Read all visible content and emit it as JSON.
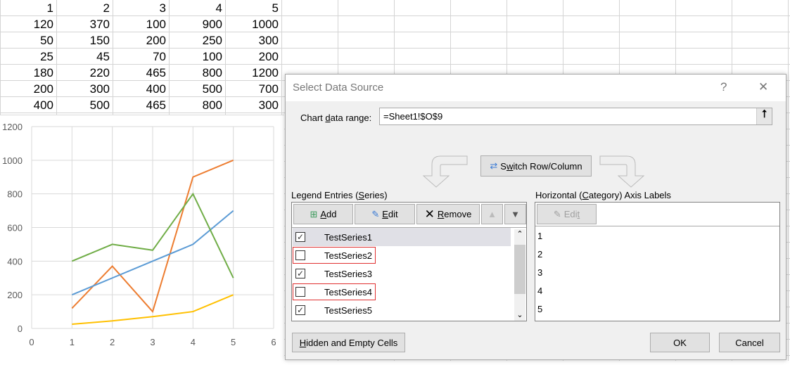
{
  "sheet": {
    "rows": [
      [
        "1",
        "2",
        "3",
        "4",
        "5"
      ],
      [
        "120",
        "370",
        "100",
        "900",
        "1000"
      ],
      [
        "50",
        "150",
        "200",
        "250",
        "300"
      ],
      [
        "25",
        "45",
        "70",
        "100",
        "200"
      ],
      [
        "180",
        "220",
        "465",
        "800",
        "1200"
      ],
      [
        "200",
        "300",
        "400",
        "500",
        "700"
      ],
      [
        "400",
        "500",
        "465",
        "800",
        "300"
      ]
    ]
  },
  "chart_data": {
    "type": "line",
    "xlim": [
      0,
      6
    ],
    "ylim": [
      0,
      1200
    ],
    "x_ticks": [
      "0",
      "1",
      "2",
      "3",
      "4",
      "5",
      "6"
    ],
    "y_ticks": [
      "0",
      "200",
      "400",
      "600",
      "800",
      "1000",
      "1200"
    ],
    "grid": true,
    "x": [
      1,
      2,
      3,
      4,
      5
    ],
    "series": [
      {
        "values": [
          120,
          370,
          100,
          900,
          1000
        ],
        "color": "#ed7d31"
      },
      {
        "values": [
          25,
          45,
          70,
          100,
          200
        ],
        "color": "#ffc000"
      },
      {
        "values": [
          200,
          300,
          400,
          500,
          700
        ],
        "color": "#5b9bd5"
      },
      {
        "values": [
          400,
          500,
          465,
          800,
          300
        ],
        "color": "#70ad47"
      }
    ]
  },
  "dialog": {
    "title": "Select Data Source",
    "help": "?",
    "close": "✕",
    "range_label_pre": "Chart ",
    "range_label_u": "d",
    "range_label_post": "ata range:",
    "range_value": "=Sheet1!$O$9",
    "switch_pre": "S",
    "switch_u": "w",
    "switch_post": "itch Row/Column",
    "legend_pre": "Legend Entries (",
    "legend_u": "S",
    "legend_post": "eries)",
    "add_u": "A",
    "add_post": "dd",
    "edit_u": "E",
    "edit_post": "dit",
    "remove_u": "R",
    "remove_post": "emove",
    "series": [
      {
        "name": "TestSeries1",
        "checked": true
      },
      {
        "name": "TestSeries2",
        "checked": false
      },
      {
        "name": "TestSeries3",
        "checked": true
      },
      {
        "name": "TestSeries4",
        "checked": false
      },
      {
        "name": "TestSeries5",
        "checked": true
      }
    ],
    "axis_pre": "Horizontal (",
    "axis_u": "C",
    "axis_post": "ategory) Axis Labels",
    "axis_edit_pre": "Edi",
    "axis_edit_u": "t",
    "axis_labels": [
      "1",
      "2",
      "3",
      "4",
      "5"
    ],
    "hidden_u": "H",
    "hidden_post": "idden and Empty Cells",
    "ok": "OK",
    "cancel": "Cancel"
  }
}
